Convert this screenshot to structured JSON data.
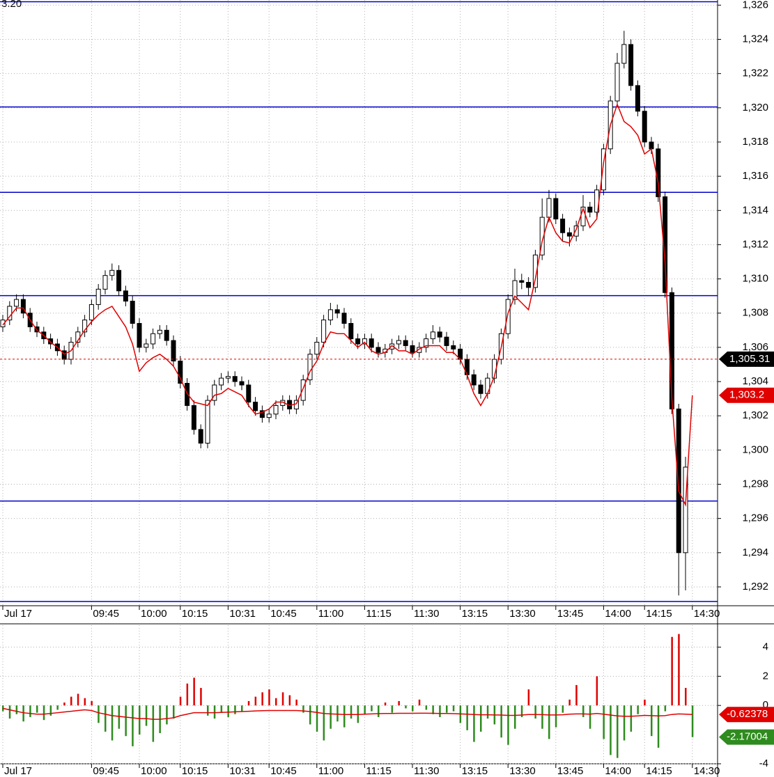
{
  "chart_data": [
    {
      "type": "candlestick",
      "corner_label": "3.20",
      "x": [
        "Jul 17",
        null,
        null,
        null,
        null,
        null,
        null,
        null,
        null,
        null,
        null,
        null,
        null,
        "09:45",
        null,
        null,
        null,
        null,
        null,
        null,
        "10:00",
        null,
        null,
        null,
        null,
        null,
        "10:15",
        null,
        null,
        null,
        null,
        null,
        null,
        "10:31",
        null,
        null,
        null,
        null,
        null,
        "10:45",
        null,
        null,
        null,
        null,
        null,
        null,
        "11:00",
        null,
        null,
        null,
        null,
        null,
        null,
        "11:15",
        null,
        null,
        null,
        null,
        null,
        null,
        "11:30",
        null,
        null,
        null,
        null,
        null,
        null,
        "13:15",
        null,
        null,
        null,
        null,
        null,
        null,
        "13:30",
        null,
        null,
        null,
        null,
        null,
        null,
        "13:45",
        null,
        null,
        null,
        null,
        null,
        null,
        "14:00",
        null,
        null,
        null,
        null,
        null,
        "14:15",
        null,
        null,
        null,
        null,
        null,
        null,
        "14:30"
      ],
      "open": [
        1307.2,
        1307.6,
        1308.4,
        1308.8,
        1308.0,
        1307.2,
        1306.9,
        1306.5,
        1306.2,
        1305.8,
        1305.3,
        1306.3,
        1306.9,
        1307.6,
        1308.5,
        1309.4,
        1310.2,
        1310.5,
        1309.3,
        1308.7,
        1307.4,
        1306.0,
        1306.2,
        1306.8,
        1307.0,
        1306.4,
        1305.2,
        1303.9,
        1302.6,
        1301.2,
        1300.4,
        1302.9,
        1303.8,
        1304.2,
        1304.3,
        1304.0,
        1303.8,
        1302.8,
        1302.3,
        1301.9,
        1302.1,
        1302.6,
        1302.9,
        1302.4,
        1302.9,
        1304.1,
        1305.6,
        1306.3,
        1307.6,
        1308.2,
        1308.0,
        1307.4,
        1306.5,
        1306.2,
        1306.5,
        1306.0,
        1305.7,
        1305.9,
        1306.2,
        1306.4,
        1306.1,
        1305.7,
        1306.0,
        1306.5,
        1306.9,
        1306.6,
        1306.1,
        1305.9,
        1305.3,
        1304.4,
        1303.8,
        1303.3,
        1304.2,
        1305.3,
        1306.8,
        1308.8,
        1309.9,
        1309.8,
        1309.5,
        1311.4,
        1313.6,
        1314.7,
        1313.5,
        1312.7,
        1312.5,
        1313.1,
        1314.2,
        1313.9,
        1315.2,
        1317.6,
        1320.4,
        1322.6,
        1323.7,
        1321.3,
        1319.8,
        1318.0,
        1317.6,
        1314.8,
        1309.2,
        1302.4,
        1294.0,
        null
      ],
      "high": [
        1307.9,
        1308.7,
        1309.1,
        1309.1,
        1308.3,
        1307.5,
        1307.2,
        1306.8,
        1306.5,
        1306.1,
        1306.6,
        1307.2,
        1307.9,
        1308.8,
        1309.7,
        1310.5,
        1310.9,
        1310.8,
        1309.6,
        1309.0,
        1307.7,
        1306.5,
        1307.1,
        1307.3,
        1307.3,
        1306.7,
        1305.5,
        1304.2,
        1302.9,
        1301.5,
        1303.2,
        1304.1,
        1304.5,
        1304.6,
        1304.6,
        1304.3,
        1304.1,
        1303.1,
        1302.6,
        1302.4,
        1302.9,
        1303.2,
        1303.2,
        1303.2,
        1304.4,
        1305.9,
        1306.6,
        1307.9,
        1308.6,
        1308.5,
        1308.3,
        1307.7,
        1306.8,
        1306.8,
        1306.8,
        1306.3,
        1306.2,
        1306.5,
        1306.7,
        1306.7,
        1306.4,
        1306.3,
        1306.8,
        1307.3,
        1307.2,
        1306.9,
        1306.4,
        1306.2,
        1305.6,
        1304.7,
        1304.1,
        1304.5,
        1305.6,
        1307.1,
        1309.1,
        1310.6,
        1310.3,
        1310.1,
        1311.7,
        1314.7,
        1315.2,
        1315.0,
        1313.8,
        1313.0,
        1313.4,
        1314.9,
        1314.5,
        1315.5,
        1317.9,
        1320.7,
        1323.2,
        1324.5,
        1324.0,
        1321.6,
        1320.1,
        1318.3,
        1317.9,
        1315.1,
        1309.5,
        1302.7,
        1299.6,
        null
      ],
      "low": [
        1306.9,
        1307.3,
        1308.1,
        1307.7,
        1306.9,
        1306.6,
        1306.2,
        1305.9,
        1305.5,
        1305.0,
        1305.0,
        1306.0,
        1306.6,
        1307.3,
        1308.2,
        1309.1,
        1309.9,
        1309.0,
        1308.4,
        1307.1,
        1305.7,
        1305.7,
        1305.9,
        1306.5,
        1306.1,
        1304.9,
        1303.6,
        1302.3,
        1300.9,
        1300.1,
        1300.1,
        1302.6,
        1303.5,
        1303.9,
        1303.7,
        1303.5,
        1302.5,
        1302.0,
        1301.6,
        1301.6,
        1301.8,
        1302.3,
        1302.1,
        1302.1,
        1302.6,
        1303.8,
        1305.3,
        1306.0,
        1307.3,
        1307.7,
        1307.1,
        1306.2,
        1305.9,
        1305.9,
        1305.7,
        1305.4,
        1305.4,
        1305.6,
        1305.9,
        1305.8,
        1305.4,
        1305.4,
        1305.7,
        1306.2,
        1306.3,
        1305.8,
        1305.6,
        1305.0,
        1304.1,
        1303.5,
        1303.0,
        1303.0,
        1303.9,
        1305.0,
        1306.5,
        1308.5,
        1309.4,
        1309.0,
        1309.2,
        1311.1,
        1313.3,
        1313.2,
        1312.2,
        1311.9,
        1312.2,
        1312.8,
        1313.6,
        1313.6,
        1314.9,
        1317.3,
        1320.1,
        1322.3,
        1321.0,
        1319.5,
        1317.7,
        1317.3,
        1314.5,
        1308.9,
        1302.1,
        1291.5,
        1291.8,
        null
      ],
      "close": [
        1307.6,
        1308.4,
        1308.8,
        1308.0,
        1307.2,
        1306.9,
        1306.5,
        1306.2,
        1305.8,
        1305.3,
        1306.3,
        1306.9,
        1307.6,
        1308.5,
        1309.4,
        1310.2,
        1310.5,
        1309.3,
        1308.7,
        1307.4,
        1306.0,
        1306.2,
        1306.8,
        1307.0,
        1306.4,
        1305.2,
        1303.9,
        1302.6,
        1301.2,
        1300.4,
        1302.9,
        1303.8,
        1304.2,
        1304.3,
        1304.0,
        1303.8,
        1302.8,
        1302.3,
        1301.9,
        1302.1,
        1302.6,
        1302.9,
        1302.4,
        1302.9,
        1304.1,
        1305.6,
        1306.3,
        1307.6,
        1308.2,
        1308.0,
        1307.4,
        1306.5,
        1306.2,
        1306.5,
        1306.0,
        1305.7,
        1305.9,
        1306.2,
        1306.4,
        1306.1,
        1305.7,
        1306.0,
        1306.5,
        1306.9,
        1306.6,
        1306.1,
        1305.9,
        1305.3,
        1304.4,
        1303.8,
        1303.3,
        1304.2,
        1305.3,
        1306.8,
        1308.8,
        1309.9,
        1309.8,
        1309.5,
        1311.4,
        1313.6,
        1314.7,
        1313.5,
        1312.7,
        1312.5,
        1313.1,
        1314.2,
        1313.9,
        1315.2,
        1317.6,
        1320.4,
        1322.6,
        1323.7,
        1321.3,
        1319.8,
        1318.0,
        1317.6,
        1314.8,
        1309.2,
        1302.4,
        1294.0,
        1299.0,
        null
      ],
      "ma": [
        1307.3,
        1307.8,
        1308.3,
        1308.3,
        1307.6,
        1307.0,
        1306.7,
        1306.3,
        1306.0,
        1305.6,
        1305.8,
        1306.4,
        1307.0,
        1307.5,
        1307.9,
        1308.2,
        1308.4,
        1307.8,
        1307.2,
        1306.2,
        1304.6,
        1305.1,
        1305.4,
        1305.6,
        1305.3,
        1304.9,
        1304.2,
        1303.3,
        1302.8,
        1302.7,
        1302.6,
        1303.2,
        1303.3,
        1303.6,
        1303.4,
        1303.2,
        1302.6,
        1302.1,
        1302.2,
        1302.4,
        1302.8,
        1302.8,
        1302.6,
        1302.7,
        1303.6,
        1304.6,
        1305.2,
        1306.2,
        1306.9,
        1306.8,
        1306.8,
        1306.4,
        1306.0,
        1306.3,
        1305.8,
        1305.6,
        1305.7,
        1306.1,
        1305.8,
        1305.8,
        1305.6,
        1305.9,
        1306.1,
        1306.1,
        1306.1,
        1305.7,
        1305.7,
        1305.3,
        1304.4,
        1303.3,
        1302.6,
        1303.3,
        1304.3,
        1306.0,
        1308.0,
        1309.0,
        1308.6,
        1308.2,
        1310.0,
        1312.2,
        1313.6,
        1312.7,
        1312.2,
        1312.1,
        1312.9,
        1314.1,
        1313.0,
        1313.5,
        1316.8,
        1319.0,
        1320.2,
        1319.2,
        1318.9,
        1318.4,
        1317.3,
        1317.6,
        1315.6,
        1311.0,
        1303.0,
        1297.6,
        1296.8,
        1303.2
      ],
      "ma_color": "#e00000",
      "up_color": "#ffffff",
      "down_color": "#000000",
      "levels": [
        1326.2,
        1320.05,
        1315.06,
        1309.02,
        1297.02,
        1291.15
      ],
      "level_color": "#0000cc",
      "markers": [
        {
          "value": 1305.31,
          "label": "1,305.31",
          "color": "#000000",
          "dashed": true
        },
        {
          "value": 1303.2,
          "label": "1,303.2",
          "color": "#e00000",
          "dashed": false
        }
      ],
      "ylim": [
        1290.9,
        1326.3
      ],
      "yticks": [
        {
          "value": 1292,
          "label": "1,292"
        },
        {
          "value": 1294,
          "label": "1,294"
        },
        {
          "value": 1296,
          "label": "1,296"
        },
        {
          "value": 1298,
          "label": "1,298"
        },
        {
          "value": 1300,
          "label": "1,300"
        },
        {
          "value": 1302,
          "label": "1,302"
        },
        {
          "value": 1304,
          "label": "1,304"
        },
        {
          "value": 1306,
          "label": "1,306"
        },
        {
          "value": 1308,
          "label": "1,308"
        },
        {
          "value": 1310,
          "label": "1,310"
        },
        {
          "value": 1312,
          "label": "1,312"
        },
        {
          "value": 1314,
          "label": "1,314"
        },
        {
          "value": 1316,
          "label": "1,316"
        },
        {
          "value": 1318,
          "label": "1,318"
        },
        {
          "value": 1320,
          "label": "1,320"
        },
        {
          "value": 1322,
          "label": "1,322"
        },
        {
          "value": 1324,
          "label": "1,324"
        },
        {
          "value": 1326,
          "label": "1,326"
        }
      ],
      "grid": true
    },
    {
      "type": "bar",
      "values": [
        -0.4,
        -0.9,
        -0.6,
        -1.1,
        -0.8,
        -0.5,
        -1.0,
        -0.7,
        -0.3,
        0.2,
        0.6,
        0.8,
        0.5,
        0.3,
        -1.2,
        -1.8,
        -2.4,
        -1.6,
        -2.1,
        -2.8,
        -2.0,
        -1.4,
        -2.5,
        -1.9,
        -1.3,
        -0.9,
        0.6,
        1.5,
        1.9,
        1.2,
        -0.7,
        -0.9,
        -0.5,
        -0.8,
        -0.6,
        -0.4,
        0.3,
        0.6,
        0.9,
        1.1,
        0.5,
        0.9,
        0.7,
        0.4,
        -0.5,
        -1.3,
        -1.8,
        -2.4,
        -1.6,
        -1.1,
        -1.5,
        -0.9,
        -1.2,
        -0.6,
        -0.4,
        -0.8,
        0.2,
        -0.5,
        0.3,
        -0.2,
        -0.4,
        0.4,
        -0.3,
        -0.6,
        -0.8,
        -0.5,
        -0.4,
        -1.2,
        -1.7,
        -2.5,
        -1.8,
        -0.9,
        -1.3,
        -2.2,
        -2.7,
        -1.6,
        -0.8,
        1.1,
        -0.9,
        -1.6,
        -2.3,
        -1.5,
        -0.5,
        0.4,
        1.4,
        -0.8,
        -1.6,
        2.0,
        -2.3,
        -3.4,
        -3.6,
        -2.4,
        -1.8,
        -0.6,
        0.4,
        -2.1,
        -2.9,
        -0.4,
        4.7,
        4.9,
        1.2,
        -2.17004
      ],
      "signal": [
        -0.2,
        -0.3,
        -0.4,
        -0.5,
        -0.55,
        -0.6,
        -0.6,
        -0.55,
        -0.5,
        -0.45,
        -0.4,
        -0.35,
        -0.3,
        -0.35,
        -0.5,
        -0.6,
        -0.7,
        -0.75,
        -0.8,
        -0.85,
        -0.9,
        -0.9,
        -0.95,
        -0.95,
        -0.9,
        -0.85,
        -0.7,
        -0.6,
        -0.5,
        -0.5,
        -0.5,
        -0.5,
        -0.48,
        -0.46,
        -0.44,
        -0.42,
        -0.4,
        -0.38,
        -0.36,
        -0.35,
        -0.35,
        -0.35,
        -0.35,
        -0.35,
        -0.38,
        -0.42,
        -0.48,
        -0.55,
        -0.58,
        -0.6,
        -0.62,
        -0.62,
        -0.62,
        -0.6,
        -0.58,
        -0.56,
        -0.55,
        -0.55,
        -0.54,
        -0.54,
        -0.54,
        -0.53,
        -0.53,
        -0.54,
        -0.55,
        -0.55,
        -0.56,
        -0.58,
        -0.6,
        -0.62,
        -0.64,
        -0.64,
        -0.65,
        -0.66,
        -0.68,
        -0.68,
        -0.66,
        -0.62,
        -0.62,
        -0.63,
        -0.65,
        -0.65,
        -0.64,
        -0.6,
        -0.58,
        -0.58,
        -0.6,
        -0.55,
        -0.6,
        -0.66,
        -0.72,
        -0.74,
        -0.74,
        -0.72,
        -0.68,
        -0.7,
        -0.72,
        -0.7,
        -0.62,
        -0.58,
        -0.6,
        -0.62378
      ],
      "up_color": "#e00000",
      "down_color": "#2e8b1e",
      "signal_color": "#e00000",
      "ylim": [
        -4,
        5.5
      ],
      "yticks": [
        -4,
        0,
        2,
        4
      ],
      "grid": true
    }
  ]
}
